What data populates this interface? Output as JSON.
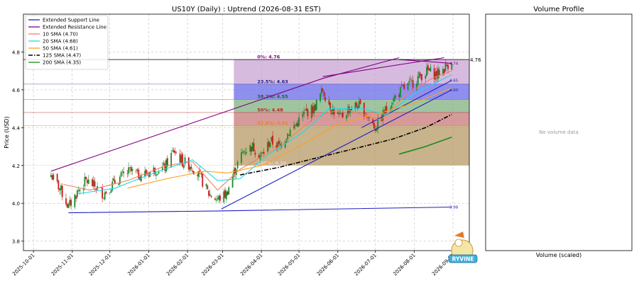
{
  "main_chart": {
    "title": "US10Y (Daily) : Uptrend (2026-08-31 EST)",
    "ylabel": "Price (USD)",
    "y_ticks": [
      "3.8",
      "4.0",
      "4.2",
      "4.4",
      "4.6",
      "4.8"
    ],
    "x_ticks": [
      "2025-10-01",
      "2025-11-01",
      "2025-12-01",
      "2026-01-01",
      "2026-02-01",
      "2026-03-01",
      "2026-04-01",
      "2026-05-01",
      "2026-06-01",
      "2026-07-01",
      "2026-08-01",
      "2026-09-01"
    ],
    "last_price_label": "4.76",
    "legend": [
      {
        "label": "Extended Support Line",
        "color": "#1f1fbf",
        "style": "solid"
      },
      {
        "label": "Extended Resistance Line",
        "color": "#800080",
        "style": "solid"
      },
      {
        "label": "10 SMA (4.70)",
        "color": "#f08060",
        "style": "solid"
      },
      {
        "label": "20 SMA (4.68)",
        "color": "#20d8e8",
        "style": "solid"
      },
      {
        "label": "50 SMA (4.61)",
        "color": "#ffa020",
        "style": "solid"
      },
      {
        "label": "125 SMA (4.47)",
        "color": "#000000",
        "style": "dashdot"
      },
      {
        "label": "200 SMA (4.35)",
        "color": "#1a8a1a",
        "style": "solid"
      }
    ],
    "fib_labels": [
      {
        "text": "0%: 4.76",
        "color": "#800080"
      },
      {
        "text": "23.5%: 4.63",
        "color": "#1a1a8a"
      },
      {
        "text": "38.2%: 4.55",
        "color": "#1a6a1a"
      },
      {
        "text": "50%: 4.48",
        "color": "#c02020"
      },
      {
        "text": "61.8%: 4.41",
        "color": "#e08a20"
      },
      {
        "text": "100%: 4.20",
        "color": "#f0d0d0"
      }
    ],
    "side_labels": [
      "4.74",
      "4.65",
      "4.60",
      "3.98"
    ]
  },
  "volume_panel": {
    "title": "Volume Profile",
    "empty_text": "No volume data",
    "xlabel": "Volume (scaled)"
  },
  "watermark": {
    "text": "RYVINE"
  },
  "chart_data": [
    {
      "type": "line",
      "title": "US10Y (Daily) : Uptrend (2026-08-31 EST)",
      "ylabel": "Price (USD)",
      "ylim": [
        3.75,
        5.0
      ],
      "xlim": [
        "2025-09-23",
        "2026-09-14"
      ],
      "grid": true,
      "legend_position": "top-left",
      "price_close": [
        [
          "2025-10-15",
          4.15
        ],
        [
          "2025-10-22",
          4.08
        ],
        [
          "2025-10-29",
          3.98
        ],
        [
          "2025-11-05",
          4.06
        ],
        [
          "2025-11-12",
          4.12
        ],
        [
          "2025-11-19",
          4.09
        ],
        [
          "2025-11-26",
          4.05
        ],
        [
          "2025-12-03",
          4.1
        ],
        [
          "2025-12-10",
          4.14
        ],
        [
          "2025-12-17",
          4.17
        ],
        [
          "2025-12-24",
          4.15
        ],
        [
          "2025-12-31",
          4.16
        ],
        [
          "2026-01-07",
          4.18
        ],
        [
          "2026-01-14",
          4.19
        ],
        [
          "2026-01-21",
          4.28
        ],
        [
          "2026-01-28",
          4.22
        ],
        [
          "2026-02-04",
          4.2
        ],
        [
          "2026-02-11",
          4.14
        ],
        [
          "2026-02-18",
          4.05
        ],
        [
          "2026-02-25",
          4.02
        ],
        [
          "2026-03-04",
          4.05
        ],
        [
          "2026-03-11",
          4.18
        ],
        [
          "2026-03-18",
          4.28
        ],
        [
          "2026-03-25",
          4.3
        ],
        [
          "2026-04-01",
          4.25
        ],
        [
          "2026-04-08",
          4.33
        ],
        [
          "2026-04-15",
          4.3
        ],
        [
          "2026-04-22",
          4.37
        ],
        [
          "2026-04-29",
          4.42
        ],
        [
          "2026-05-06",
          4.48
        ],
        [
          "2026-05-13",
          4.5
        ],
        [
          "2026-05-20",
          4.6
        ],
        [
          "2026-05-27",
          4.5
        ],
        [
          "2026-06-03",
          4.45
        ],
        [
          "2026-06-10",
          4.5
        ],
        [
          "2026-06-17",
          4.52
        ],
        [
          "2026-06-24",
          4.47
        ],
        [
          "2026-07-01",
          4.4
        ],
        [
          "2026-07-08",
          4.48
        ],
        [
          "2026-07-15",
          4.55
        ],
        [
          "2026-07-22",
          4.6
        ],
        [
          "2026-07-29",
          4.63
        ],
        [
          "2026-08-05",
          4.67
        ],
        [
          "2026-08-12",
          4.7
        ],
        [
          "2026-08-19",
          4.68
        ],
        [
          "2026-08-26",
          4.72
        ],
        [
          "2026-08-31",
          4.76
        ]
      ],
      "series": [
        {
          "name": "Extended Support Line",
          "points": [
            [
              "2025-10-29",
              3.95
            ],
            [
              "2026-02-28",
              3.96
            ],
            [
              "2026-08-31",
              3.98
            ]
          ]
        },
        {
          "name": "Extended Support Line",
          "points": [
            [
              "2026-02-28",
              3.97
            ],
            [
              "2026-08-31",
              4.6
            ]
          ]
        },
        {
          "name": "Extended Support Line",
          "points": [
            [
              "2026-06-20",
              4.4
            ],
            [
              "2026-08-31",
              4.65
            ]
          ]
        },
        {
          "name": "Extended Resistance Line",
          "points": [
            [
              "2025-10-15",
              4.17
            ],
            [
              "2026-05-20",
              4.66
            ],
            [
              "2026-07-20",
              4.77
            ]
          ]
        },
        {
          "name": "Extended Resistance Line",
          "points": [
            [
              "2026-05-20",
              4.67
            ],
            [
              "2026-08-25",
              4.77
            ]
          ]
        },
        {
          "name": "Extended Resistance Line",
          "points": [
            [
              "2026-07-20",
              4.76
            ],
            [
              "2026-08-31",
              4.74
            ]
          ]
        },
        {
          "name": "10 SMA (4.70)",
          "points": [
            [
              "2025-10-25",
              4.1
            ],
            [
              "2025-11-15",
              4.07
            ],
            [
              "2025-12-15",
              4.12
            ],
            [
              "2026-01-15",
              4.2
            ],
            [
              "2026-02-05",
              4.22
            ],
            [
              "2026-02-25",
              4.07
            ],
            [
              "2026-03-15",
              4.18
            ],
            [
              "2026-04-15",
              4.3
            ],
            [
              "2026-05-15",
              4.46
            ],
            [
              "2026-06-05",
              4.5
            ],
            [
              "2026-07-05",
              4.44
            ],
            [
              "2026-07-25",
              4.57
            ],
            [
              "2026-08-15",
              4.66
            ],
            [
              "2026-08-31",
              4.7
            ]
          ]
        },
        {
          "name": "20 SMA (4.68)",
          "points": [
            [
              "2025-11-05",
              4.05
            ],
            [
              "2025-12-05",
              4.08
            ],
            [
              "2026-01-05",
              4.16
            ],
            [
              "2026-02-05",
              4.23
            ],
            [
              "2026-02-25",
              4.12
            ],
            [
              "2026-03-15",
              4.13
            ],
            [
              "2026-04-05",
              4.25
            ],
            [
              "2026-05-05",
              4.38
            ],
            [
              "2026-05-25",
              4.5
            ],
            [
              "2026-06-20",
              4.5
            ],
            [
              "2026-07-10",
              4.47
            ],
            [
              "2026-08-01",
              4.58
            ],
            [
              "2026-08-31",
              4.68
            ]
          ]
        },
        {
          "name": "50 SMA (4.61)",
          "points": [
            [
              "2025-12-15",
              4.08
            ],
            [
              "2026-01-15",
              4.13
            ],
            [
              "2026-02-15",
              4.17
            ],
            [
              "2026-03-05",
              4.16
            ],
            [
              "2026-04-01",
              4.2
            ],
            [
              "2026-05-01",
              4.3
            ],
            [
              "2026-06-01",
              4.42
            ],
            [
              "2026-07-01",
              4.47
            ],
            [
              "2026-08-01",
              4.53
            ],
            [
              "2026-08-31",
              4.61
            ]
          ]
        },
        {
          "name": "125 SMA (4.47)",
          "points": [
            [
              "2026-03-15",
              4.15
            ],
            [
              "2026-04-15",
              4.19
            ],
            [
              "2026-05-15",
              4.24
            ],
            [
              "2026-06-15",
              4.29
            ],
            [
              "2026-07-15",
              4.34
            ],
            [
              "2026-08-10",
              4.4
            ],
            [
              "2026-08-31",
              4.47
            ]
          ]
        },
        {
          "name": "200 SMA (4.35)",
          "points": [
            [
              "2026-07-20",
              4.26
            ],
            [
              "2026-08-10",
              4.3
            ],
            [
              "2026-08-31",
              4.35
            ]
          ]
        }
      ],
      "fibonacci": {
        "start": "2026-03-10",
        "levels": [
          {
            "label": "0%",
            "value": 4.76
          },
          {
            "label": "23.5%",
            "value": 4.63
          },
          {
            "label": "38.2%",
            "value": 4.55
          },
          {
            "label": "50%",
            "value": 4.48
          },
          {
            "label": "61.8%",
            "value": 4.41
          },
          {
            "label": "100%",
            "value": 4.2
          }
        ]
      },
      "annotations": [
        {
          "text": "4.76",
          "value": 4.76
        },
        {
          "text": "4.74",
          "value": 4.74
        },
        {
          "text": "4.65",
          "value": 4.65
        },
        {
          "text": "4.60",
          "value": 4.6
        },
        {
          "text": "3.98",
          "value": 3.98
        }
      ]
    },
    {
      "type": "bar",
      "title": "Volume Profile",
      "xlabel": "Volume (scaled)",
      "values": [],
      "note": "No volume data"
    }
  ]
}
